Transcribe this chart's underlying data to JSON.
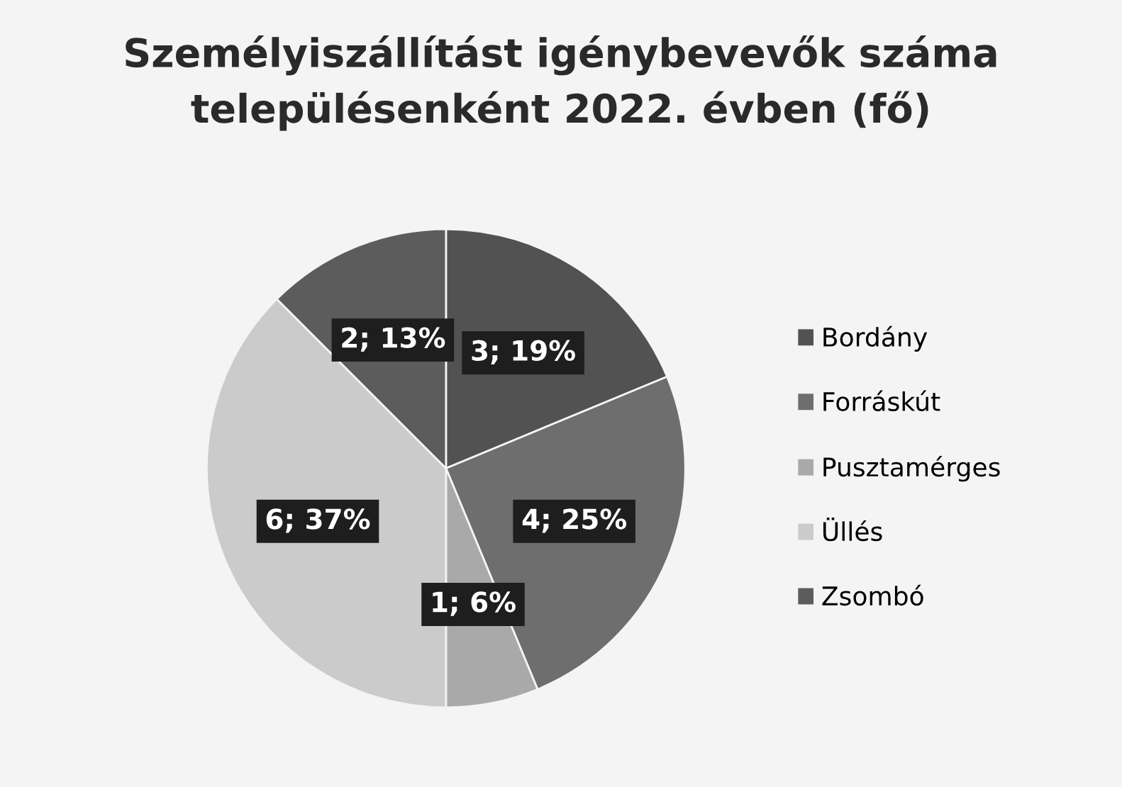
{
  "chart_data": {
    "type": "pie",
    "title": "Személyiszállítást igénybevevők száma\ntelepülésenként 2022. évben (fő)",
    "categories": [
      "Bordány",
      "Forráskút",
      "Pusztamérges",
      "Üllés",
      "Zsombó"
    ],
    "values": [
      3,
      4,
      1,
      6,
      2
    ],
    "value_labels": [
      "3; 19%",
      "4; 25%",
      "1; 6%",
      "6; 37%",
      "2; 13%"
    ],
    "colors": [
      "#525252",
      "#6e6e6e",
      "#a9a9a9",
      "#cbcbcb",
      "#5c5c5c"
    ],
    "legend": "right"
  }
}
